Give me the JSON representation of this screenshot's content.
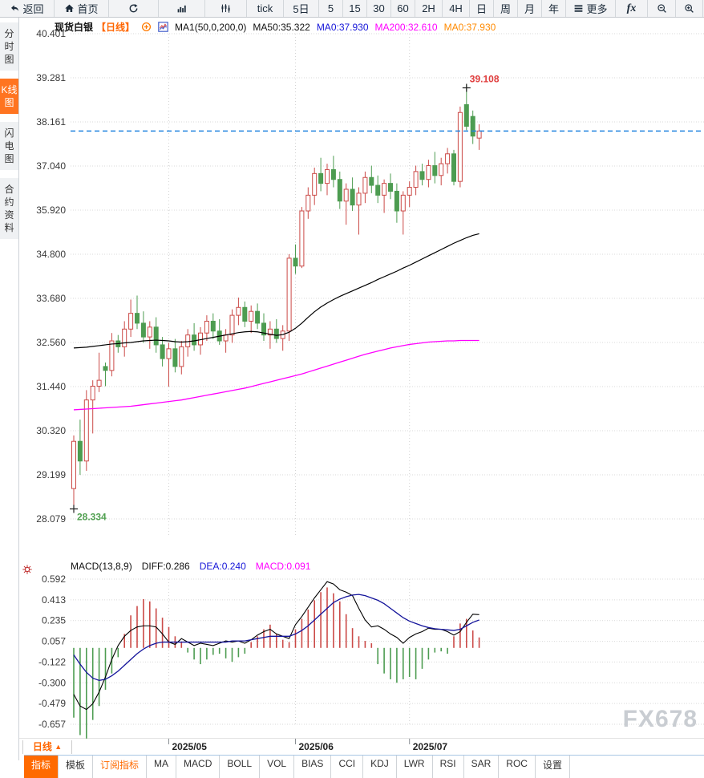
{
  "toolbar": {
    "items": [
      {
        "name": "toolbar-back-button",
        "icon": "back-arrow-icon",
        "label": "返回"
      },
      {
        "name": "toolbar-home-button",
        "icon": "home-icon",
        "label": "首页"
      },
      {
        "name": "toolbar-refresh-button",
        "icon": "refresh-icon"
      },
      {
        "name": "toolbar-line-chart-button",
        "icon": "bar-chart-icon"
      },
      {
        "name": "toolbar-candle-chart-button",
        "icon": "candlestick-icon"
      },
      {
        "name": "toolbar-tick-button",
        "label": "tick"
      },
      {
        "name": "toolbar-5d-button",
        "label": "5日"
      },
      {
        "name": "toolbar-5m-button",
        "label": "5"
      },
      {
        "name": "toolbar-15m-button",
        "label": "15"
      },
      {
        "name": "toolbar-30m-button",
        "label": "30"
      },
      {
        "name": "toolbar-60m-button",
        "label": "60"
      },
      {
        "name": "toolbar-2h-button",
        "label": "2H"
      },
      {
        "name": "toolbar-4h-button",
        "label": "4H"
      },
      {
        "name": "toolbar-day-button",
        "label": "日"
      },
      {
        "name": "toolbar-week-button",
        "label": "周"
      },
      {
        "name": "toolbar-month-button",
        "label": "月"
      },
      {
        "name": "toolbar-year-button",
        "label": "年"
      },
      {
        "name": "toolbar-more-button",
        "icon": "menu-icon",
        "label": "更多"
      },
      {
        "name": "toolbar-fx-button",
        "label": "fx"
      },
      {
        "name": "toolbar-zoom-out-button",
        "icon": "zoom-out-icon"
      },
      {
        "name": "toolbar-zoom-in-button",
        "icon": "zoom-in-icon"
      }
    ]
  },
  "sidebar": {
    "items": [
      {
        "name": "sidebar-item-time-chart",
        "label": "分时图",
        "selected": false
      },
      {
        "name": "sidebar-item-kline-chart",
        "label": "K线图",
        "selected": true
      },
      {
        "name": "sidebar-item-lightning-chart",
        "label": "闪电图",
        "selected": false
      },
      {
        "name": "sidebar-item-contract-info",
        "label": "合约资料",
        "selected": false
      }
    ]
  },
  "chart_header": {
    "symbol": "现货白银",
    "period_tag": "【日线】",
    "ma_settings": "MA1(50,0,200,0)",
    "ma50": "MA50:35.322",
    "ma0_blue": "MA0:37.930",
    "ma200": "MA200:32.610",
    "ma0_orange": "MA0:37.930"
  },
  "macd_header": {
    "title": "MACD(13,8,9)",
    "diff": "DIFF:0.286",
    "dea": "DEA:0.240",
    "macd": "MACD:0.091"
  },
  "x_axis": {
    "period_label": "日线",
    "period_arrow": "▲"
  },
  "bottom_tabs": [
    {
      "name": "tab-indicator",
      "label": "指标",
      "style": "sel"
    },
    {
      "name": "tab-template",
      "label": "模板",
      "style": ""
    },
    {
      "name": "tab-subscribe-indicator",
      "label": "订阅指标",
      "style": "orange"
    },
    {
      "name": "tab-ma",
      "label": "MA",
      "style": ""
    },
    {
      "name": "tab-macd",
      "label": "MACD",
      "style": ""
    },
    {
      "name": "tab-boll",
      "label": "BOLL",
      "style": ""
    },
    {
      "name": "tab-vol",
      "label": "VOL",
      "style": ""
    },
    {
      "name": "tab-bias",
      "label": "BIAS",
      "style": ""
    },
    {
      "name": "tab-cci",
      "label": "CCI",
      "style": ""
    },
    {
      "name": "tab-kdj",
      "label": "KDJ",
      "style": ""
    },
    {
      "name": "tab-lwr",
      "label": "LWR",
      "style": ""
    },
    {
      "name": "tab-rsi",
      "label": "RSI",
      "style": ""
    },
    {
      "name": "tab-sar",
      "label": "SAR",
      "style": ""
    },
    {
      "name": "tab-roc",
      "label": "ROC",
      "style": ""
    },
    {
      "name": "tab-settings",
      "label": "设置",
      "style": ""
    }
  ],
  "watermark": "FX678",
  "colors": {
    "up": "#cb4a47",
    "down": "#4d9c51",
    "ma50": "#000000",
    "ma200": "#ff00ff",
    "diff": "#000000",
    "dea": "#14149b",
    "current_price_line": "#2285e0",
    "accent_orange": "#ff6600",
    "high_label": "#e03c3c",
    "low_label": "#52a152",
    "grid": "#d9d9d9"
  },
  "chart_data": {
    "type": "candlestick+macd",
    "panels": [
      {
        "type": "candlestick",
        "title": "现货白银 日线",
        "y_ticks": [
          "40.401",
          "39.281",
          "38.161",
          "37.040",
          "35.920",
          "34.800",
          "33.680",
          "32.560",
          "31.440",
          "30.320",
          "29.199",
          "28.079"
        ],
        "current_price": 37.93,
        "high_marker": {
          "index": 62,
          "price": 39.108,
          "label": "39.108"
        },
        "low_marker": {
          "index": 0,
          "price": 28.334,
          "label": "28.334"
        },
        "month_ticks": [
          {
            "label": "2025/05",
            "index": 15
          },
          {
            "label": "2025/06",
            "index": 35
          },
          {
            "label": "2025/07",
            "index": 53
          }
        ],
        "candles": [
          [
            28.85,
            30.2,
            28.334,
            30.05
          ],
          [
            30.05,
            30.6,
            29.2,
            29.55
          ],
          [
            29.55,
            31.35,
            29.3,
            31.1
          ],
          [
            31.1,
            31.6,
            30.25,
            31.45
          ],
          [
            31.45,
            32.3,
            31.3,
            31.6
          ],
          [
            31.95,
            32.05,
            31.45,
            31.85
          ],
          [
            31.85,
            32.8,
            31.7,
            32.6
          ],
          [
            32.6,
            32.75,
            32.3,
            32.45
          ],
          [
            32.45,
            33.1,
            32.2,
            32.9
          ],
          [
            32.9,
            33.65,
            32.7,
            33.3
          ],
          [
            33.3,
            33.75,
            32.9,
            33.05
          ],
          [
            33.05,
            33.35,
            32.55,
            32.7
          ],
          [
            32.7,
            33.1,
            32.4,
            32.95
          ],
          [
            32.95,
            33.2,
            32.3,
            32.5
          ],
          [
            32.5,
            32.7,
            31.95,
            32.15
          ],
          [
            32.15,
            32.55,
            31.44,
            32.4
          ],
          [
            32.4,
            32.65,
            31.8,
            31.95
          ],
          [
            31.95,
            32.6,
            31.75,
            32.45
          ],
          [
            32.45,
            32.9,
            32.2,
            32.75
          ],
          [
            32.75,
            33.05,
            32.35,
            32.5
          ],
          [
            32.5,
            32.95,
            32.25,
            32.8
          ],
          [
            32.8,
            33.25,
            32.6,
            33.1
          ],
          [
            33.1,
            33.3,
            32.65,
            32.85
          ],
          [
            32.85,
            33.15,
            32.5,
            32.6
          ],
          [
            32.6,
            32.9,
            32.3,
            32.75
          ],
          [
            32.75,
            33.4,
            32.55,
            33.25
          ],
          [
            33.25,
            33.7,
            33.0,
            33.45
          ],
          [
            33.45,
            33.6,
            32.95,
            33.1
          ],
          [
            33.1,
            33.5,
            32.8,
            33.35
          ],
          [
            33.35,
            33.55,
            32.9,
            33.05
          ],
          [
            33.05,
            33.3,
            32.6,
            32.75
          ],
          [
            32.75,
            33.1,
            32.4,
            32.9
          ],
          [
            32.9,
            33.15,
            32.55,
            32.66
          ],
          [
            32.66,
            33.0,
            32.35,
            32.85
          ],
          [
            32.85,
            34.8,
            32.6,
            34.7
          ],
          [
            34.7,
            35.05,
            34.3,
            34.5
          ],
          [
            34.5,
            36.0,
            34.45,
            35.9
          ],
          [
            35.9,
            36.5,
            35.7,
            36.3
          ],
          [
            36.3,
            37.0,
            36.05,
            36.85
          ],
          [
            36.85,
            37.25,
            36.4,
            36.6
          ],
          [
            36.6,
            37.1,
            36.3,
            36.95
          ],
          [
            36.95,
            37.3,
            36.5,
            36.7
          ],
          [
            36.7,
            36.9,
            35.95,
            36.15
          ],
          [
            36.15,
            36.6,
            35.55,
            36.45
          ],
          [
            36.45,
            36.75,
            35.9,
            36.05
          ],
          [
            36.05,
            36.5,
            35.3,
            36.35
          ],
          [
            36.35,
            36.9,
            36.1,
            36.75
          ],
          [
            36.75,
            37.05,
            36.35,
            36.55
          ],
          [
            36.55,
            36.8,
            36.1,
            36.3
          ],
          [
            36.3,
            36.7,
            35.85,
            36.6
          ],
          [
            36.6,
            36.85,
            36.2,
            36.4
          ],
          [
            36.4,
            36.6,
            35.6,
            35.9
          ],
          [
            35.9,
            36.4,
            35.3,
            36.3
          ],
          [
            36.3,
            36.65,
            36.0,
            36.5
          ],
          [
            36.5,
            37.05,
            36.3,
            36.9
          ],
          [
            36.9,
            37.1,
            36.55,
            36.7
          ],
          [
            36.7,
            37.2,
            36.5,
            37.05
          ],
          [
            37.05,
            37.4,
            36.6,
            36.8
          ],
          [
            36.8,
            37.25,
            36.55,
            37.1
          ],
          [
            37.1,
            37.5,
            36.85,
            37.35
          ],
          [
            37.35,
            37.45,
            36.55,
            36.65
          ],
          [
            36.65,
            38.55,
            36.5,
            38.4
          ],
          [
            38.6,
            39.108,
            37.95,
            38.05
          ],
          [
            38.3,
            38.45,
            37.6,
            37.8
          ],
          [
            37.75,
            38.1,
            37.45,
            37.93
          ]
        ],
        "ma50": [
          32.42,
          32.43,
          32.44,
          32.46,
          32.48,
          32.5,
          32.52,
          32.53,
          32.55,
          32.56,
          32.58,
          32.6,
          32.61,
          32.62,
          32.61,
          32.6,
          32.58,
          32.57,
          32.58,
          32.6,
          32.63,
          32.66,
          32.69,
          32.72,
          32.75,
          32.78,
          32.81,
          32.83,
          32.84,
          32.83,
          32.8,
          32.77,
          32.74,
          32.76,
          32.82,
          32.92,
          33.05,
          33.2,
          33.34,
          33.46,
          33.56,
          33.65,
          33.73,
          33.8,
          33.87,
          33.94,
          34.01,
          34.08,
          34.16,
          34.23,
          34.3,
          34.37,
          34.45,
          34.52,
          34.6,
          34.68,
          34.76,
          34.84,
          34.92,
          35.0,
          35.08,
          35.15,
          35.22,
          35.28,
          35.32
        ],
        "ma200": [
          30.85,
          30.86,
          30.87,
          30.88,
          30.89,
          30.9,
          30.91,
          30.92,
          30.93,
          30.94,
          30.96,
          30.98,
          31.0,
          31.02,
          31.04,
          31.06,
          31.08,
          31.1,
          31.13,
          31.16,
          31.19,
          31.22,
          31.25,
          31.28,
          31.31,
          31.34,
          31.37,
          31.4,
          31.44,
          31.48,
          31.52,
          31.56,
          31.6,
          31.64,
          31.68,
          31.72,
          31.76,
          31.81,
          31.86,
          31.91,
          31.96,
          32.01,
          32.06,
          32.11,
          32.16,
          32.21,
          32.26,
          32.3,
          32.34,
          32.38,
          32.42,
          32.45,
          32.48,
          32.51,
          32.53,
          32.55,
          32.57,
          32.58,
          32.59,
          32.6,
          32.6,
          32.61,
          32.61,
          32.61,
          32.61
        ]
      },
      {
        "type": "macd",
        "y_ticks": [
          "0.592",
          "0.413",
          "0.235",
          "0.057",
          "-0.122",
          "-0.300",
          "-0.479",
          "-0.657"
        ],
        "histogram": [
          -0.6,
          -0.75,
          -0.78,
          -0.62,
          -0.5,
          -0.36,
          -0.22,
          -0.08,
          0.12,
          0.28,
          0.36,
          0.42,
          0.4,
          0.34,
          0.26,
          0.18,
          0.1,
          0.05,
          -0.04,
          -0.1,
          -0.14,
          -0.1,
          -0.06,
          -0.05,
          -0.09,
          -0.12,
          -0.08,
          -0.05,
          0.05,
          0.1,
          0.16,
          0.2,
          0.12,
          0.07,
          0.05,
          0.16,
          0.25,
          0.33,
          0.41,
          0.48,
          0.52,
          0.47,
          0.4,
          0.29,
          0.17,
          0.1,
          0.06,
          0.04,
          -0.14,
          -0.22,
          -0.27,
          -0.3,
          -0.27,
          -0.25,
          -0.27,
          -0.18,
          -0.1,
          -0.04,
          -0.03,
          -0.05,
          0.1,
          0.21,
          0.25,
          0.15,
          0.09
        ],
        "diff_line": [
          -0.4,
          -0.5,
          -0.53,
          -0.48,
          -0.38,
          -0.25,
          -0.1,
          0.02,
          0.1,
          0.15,
          0.18,
          0.19,
          0.19,
          0.18,
          0.12,
          0.05,
          0.03,
          0.08,
          0.05,
          0.02,
          0.04,
          0.03,
          0.02,
          0.04,
          0.06,
          0.05,
          0.06,
          0.04,
          0.07,
          0.11,
          0.14,
          0.16,
          0.12,
          0.1,
          0.08,
          0.2,
          0.27,
          0.35,
          0.43,
          0.5,
          0.57,
          0.55,
          0.5,
          0.48,
          0.45,
          0.34,
          0.24,
          0.18,
          0.19,
          0.16,
          0.12,
          0.09,
          0.04,
          0.09,
          0.12,
          0.14,
          0.17,
          0.16,
          0.16,
          0.14,
          0.11,
          0.14,
          0.22,
          0.29,
          0.286
        ],
        "dea_line": [
          -0.06,
          -0.14,
          -0.21,
          -0.26,
          -0.28,
          -0.27,
          -0.24,
          -0.2,
          -0.15,
          -0.1,
          -0.05,
          -0.01,
          0.02,
          0.04,
          0.05,
          0.05,
          0.05,
          0.05,
          0.05,
          0.05,
          0.05,
          0.05,
          0.05,
          0.05,
          0.05,
          0.06,
          0.06,
          0.06,
          0.07,
          0.08,
          0.09,
          0.1,
          0.1,
          0.1,
          0.1,
          0.12,
          0.15,
          0.19,
          0.24,
          0.29,
          0.34,
          0.39,
          0.42,
          0.44,
          0.455,
          0.46,
          0.45,
          0.43,
          0.41,
          0.38,
          0.34,
          0.3,
          0.26,
          0.23,
          0.21,
          0.19,
          0.175,
          0.165,
          0.16,
          0.155,
          0.15,
          0.16,
          0.19,
          0.22,
          0.24
        ]
      }
    ]
  }
}
